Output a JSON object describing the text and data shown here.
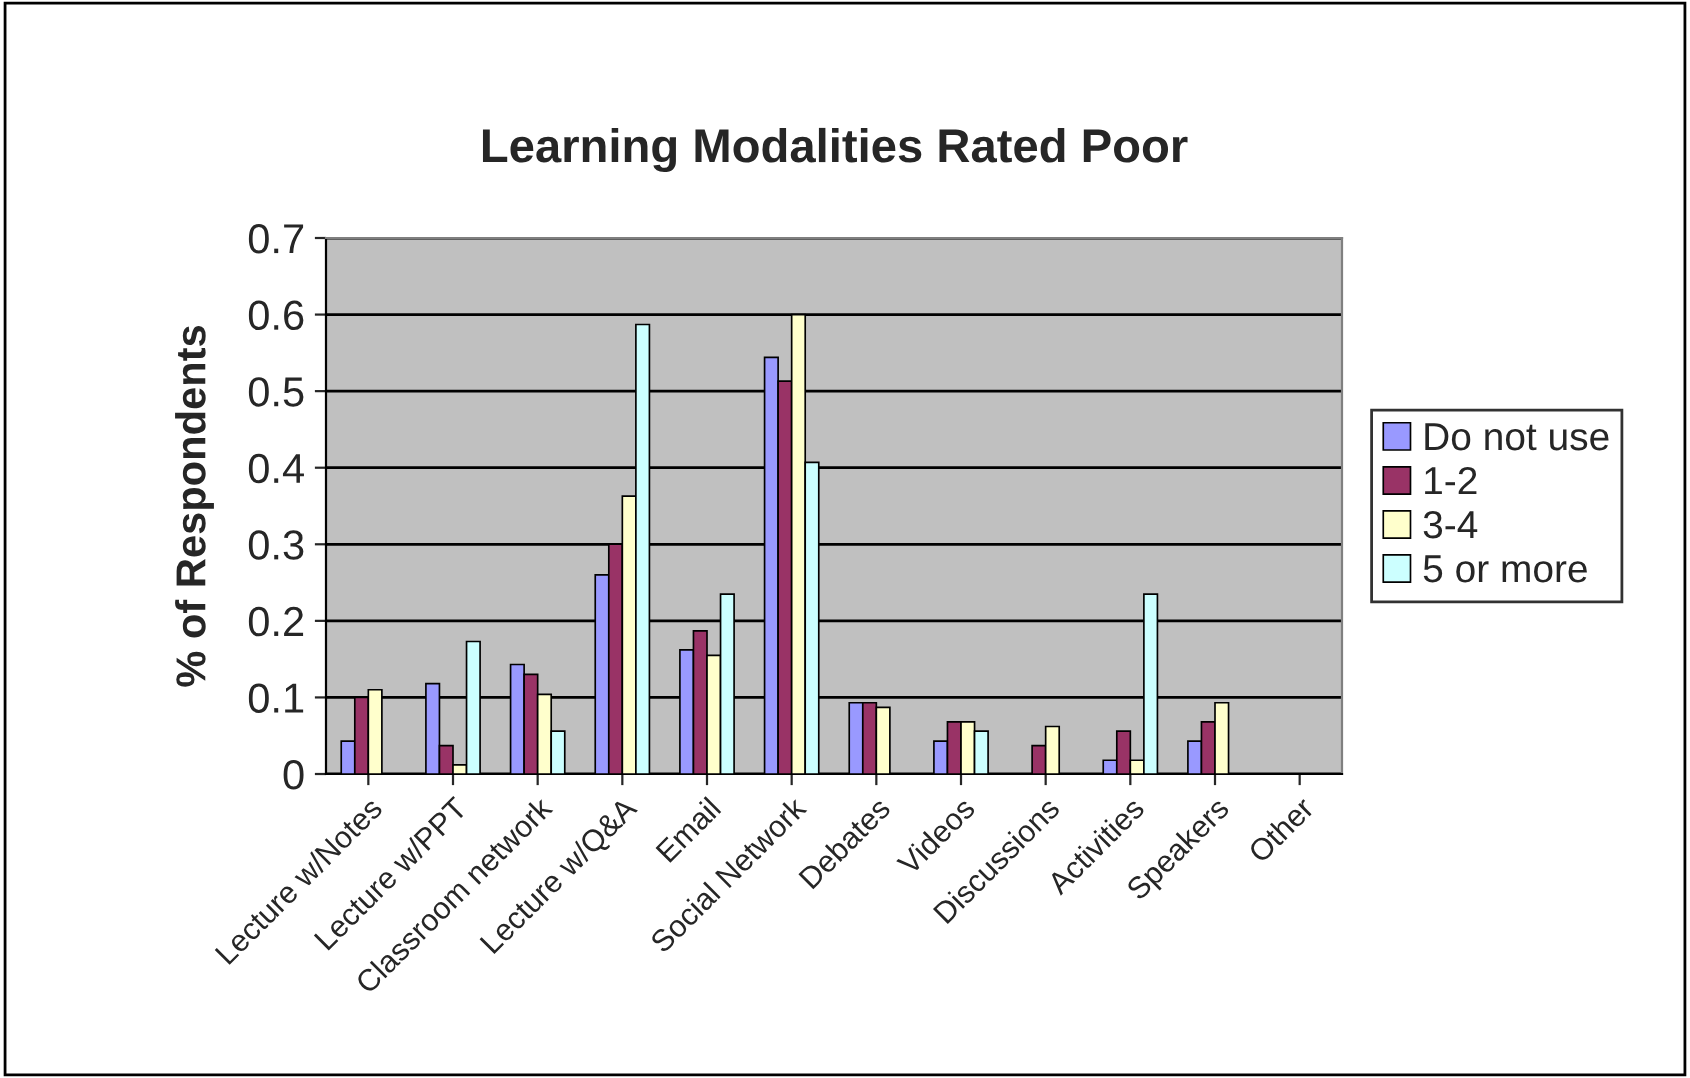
{
  "chart_data": {
    "type": "bar",
    "title": "Learning Modalities Rated Poor",
    "ylabel": "% of Respondents",
    "categories": [
      "Lecture w/Notes",
      "Lecture w/PPT",
      "Classroom network",
      "Lecture w/Q&A",
      "Email",
      "Social Network",
      "Debates",
      "Videos",
      "Discussions",
      "Activities",
      "Speakers",
      "Other"
    ],
    "series": [
      {
        "name": "Do not use",
        "color": "#9999ff",
        "values": [
          0.043,
          0.118,
          0.143,
          0.26,
          0.162,
          0.544,
          0.093,
          0.043,
          null,
          0.018,
          0.043,
          null
        ]
      },
      {
        "name": "1-2",
        "color": "#993366",
        "values": [
          0.1,
          0.037,
          0.13,
          0.3,
          0.187,
          0.513,
          0.093,
          0.068,
          0.037,
          0.056,
          0.068,
          null
        ]
      },
      {
        "name": "3-4",
        "color": "#ffffcc",
        "values": [
          0.11,
          0.012,
          0.104,
          0.363,
          0.155,
          0.6,
          0.087,
          0.068,
          0.062,
          0.018,
          0.093,
          null
        ]
      },
      {
        "name": "5 or more",
        "color": "#ccffff",
        "values": [
          null,
          0.173,
          0.056,
          0.587,
          0.235,
          0.407,
          null,
          0.056,
          null,
          0.235,
          null,
          null
        ]
      }
    ],
    "ylim": [
      0,
      0.7
    ],
    "yticks": [
      {
        "value": 0,
        "label": "0"
      },
      0.1,
      0.2,
      0.3,
      0.4,
      0.5,
      0.6,
      0.7
    ],
    "grid": "y",
    "legend": "right"
  }
}
